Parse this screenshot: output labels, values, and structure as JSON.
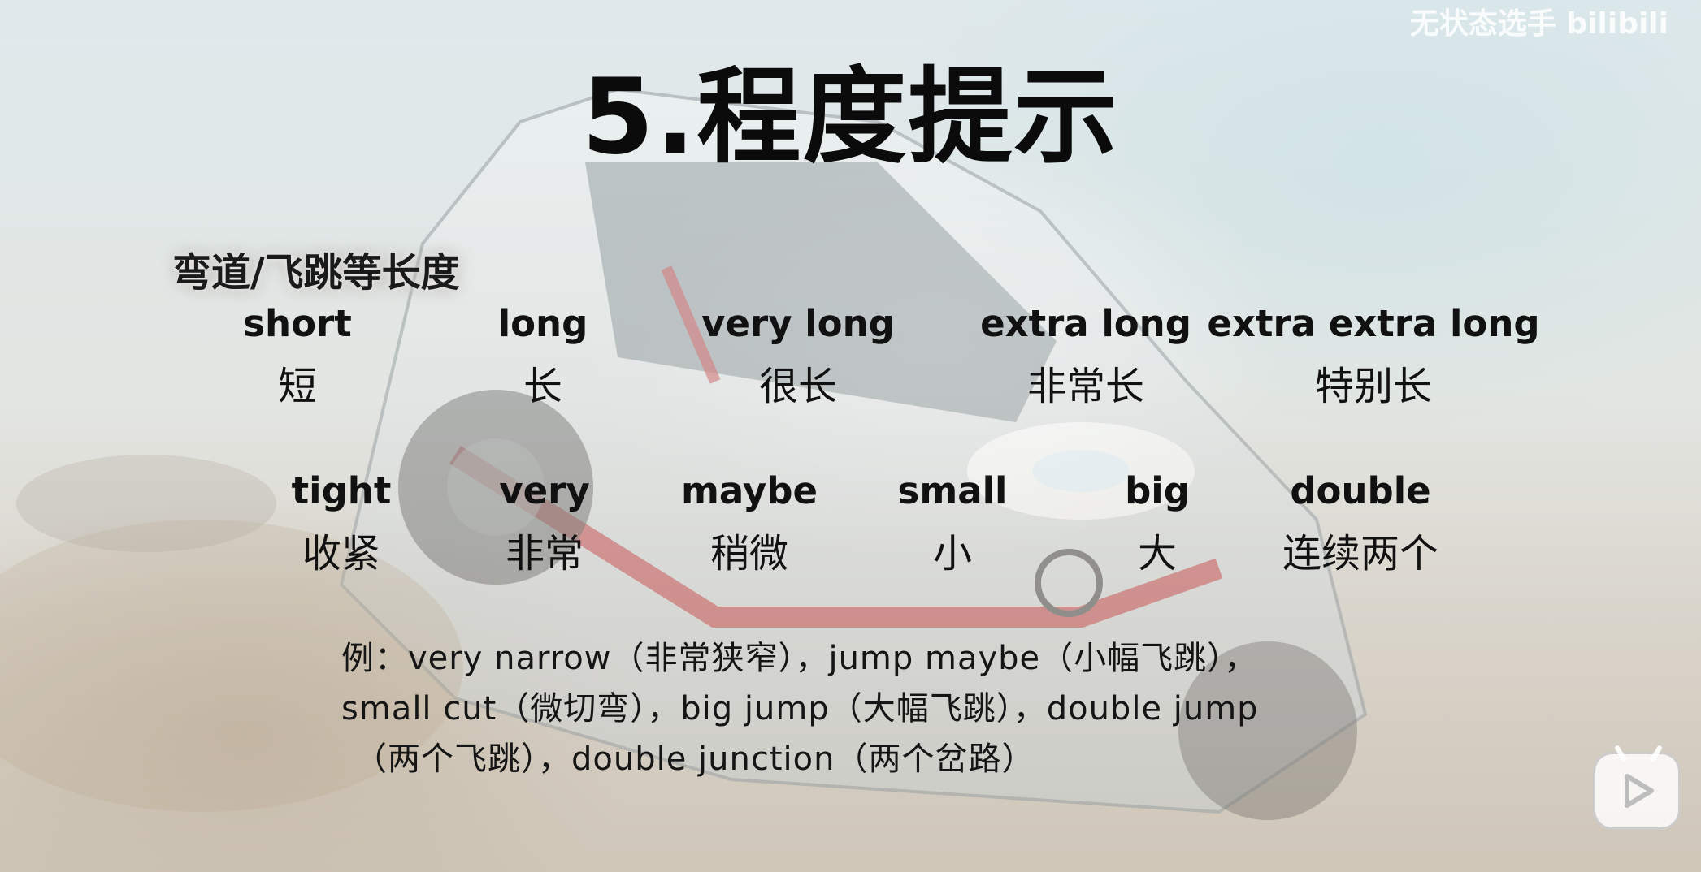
{
  "watermark": "无状态选手 bilibili",
  "title": "5.程度提示",
  "subheading": "弯道/飞跳等长度",
  "length_terms": [
    {
      "en": "short",
      "zh": "短"
    },
    {
      "en": "long",
      "zh": "长"
    },
    {
      "en": "very long",
      "zh": "很长"
    },
    {
      "en": "extra long",
      "zh": "非常长"
    },
    {
      "en": "extra extra long",
      "zh": "特别长"
    }
  ],
  "modifier_terms": [
    {
      "en": "tight",
      "zh": "收紧"
    },
    {
      "en": "very",
      "zh": "非常"
    },
    {
      "en": "maybe",
      "zh": "稍微"
    },
    {
      "en": "small",
      "zh": "小"
    },
    {
      "en": "big",
      "zh": "大"
    },
    {
      "en": "double",
      "zh": "连续两个"
    }
  ],
  "examples": [
    "例：very narrow（非常狭窄），jump maybe（小幅飞跳），",
    "small cut（微切弯），big jump（大幅飞跳），double jump",
    "（两个飞跳），double junction（两个岔路）"
  ],
  "player": {
    "icon": "play-icon"
  }
}
